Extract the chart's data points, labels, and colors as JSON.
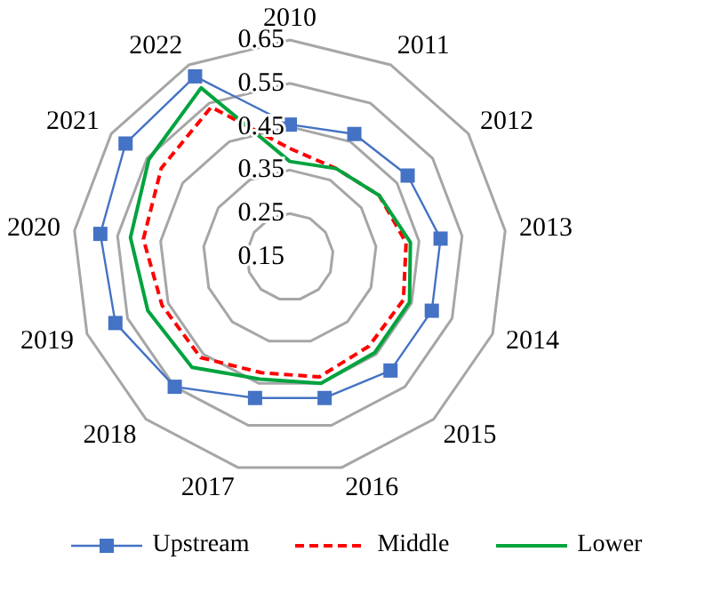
{
  "chart_data": {
    "type": "radar",
    "categories": [
      "2010",
      "2011",
      "2012",
      "2013",
      "2014",
      "2015",
      "2016",
      "2017",
      "2018",
      "2019",
      "2020",
      "2021",
      "2022"
    ],
    "series": [
      {
        "name": "Upstream",
        "color": "#4472c4",
        "marker": "square",
        "line_style": "solid",
        "values": [
          0.455,
          0.47,
          0.48,
          0.5,
          0.5,
          0.5,
          0.485,
          0.485,
          0.55,
          0.58,
          0.59,
          0.61,
          0.62
        ]
      },
      {
        "name": "Middle",
        "color": "#ff0000",
        "marker": "none",
        "line_style": "dashed",
        "values": [
          0.4,
          0.38,
          0.4,
          0.42,
          0.43,
          0.425,
          0.435,
          0.425,
          0.46,
          0.465,
          0.49,
          0.51,
          0.54
        ]
      },
      {
        "name": "Lower",
        "color": "#00a33e",
        "marker": "none",
        "line_style": "solid",
        "values": [
          0.37,
          0.38,
          0.4,
          0.43,
          0.445,
          0.445,
          0.45,
          0.44,
          0.49,
          0.5,
          0.52,
          0.545,
          0.59
        ]
      }
    ],
    "ylim": [
      0.15,
      0.65
    ],
    "yticks": [
      0.15,
      0.25,
      0.35,
      0.45,
      0.55,
      0.65
    ],
    "grid": true,
    "legend": "bottom"
  }
}
